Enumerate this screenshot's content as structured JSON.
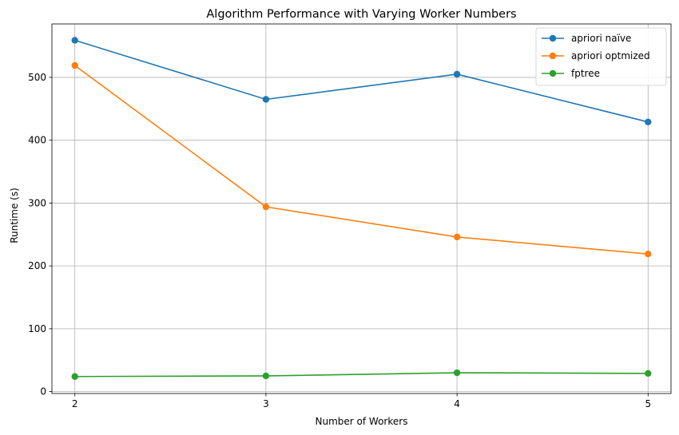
{
  "chart_data": {
    "type": "line",
    "title": "Algorithm Performance with Varying Worker Numbers",
    "xlabel": "Number of Workers",
    "ylabel": "Runtime (s)",
    "x": [
      2,
      3,
      4,
      5
    ],
    "x_ticks": [
      "2",
      "3",
      "4",
      "5"
    ],
    "y_ticks": [
      "0",
      "100",
      "200",
      "300",
      "400",
      "500"
    ],
    "y_tick_values": [
      0,
      100,
      200,
      300,
      400,
      500
    ],
    "xlim": [
      1.88,
      5.12
    ],
    "ylim": [
      -3,
      585
    ],
    "grid": true,
    "legend_position": "top-right",
    "series": [
      {
        "name": "apriori naïve",
        "color": "#1f77b4",
        "values": [
          559,
          465,
          505,
          429
        ]
      },
      {
        "name": "apriori optmized",
        "color": "#ff7f0e",
        "values": [
          519,
          294,
          246,
          219
        ]
      },
      {
        "name": "fptree",
        "color": "#2ca02c",
        "values": [
          24,
          25,
          30,
          29
        ]
      }
    ]
  }
}
